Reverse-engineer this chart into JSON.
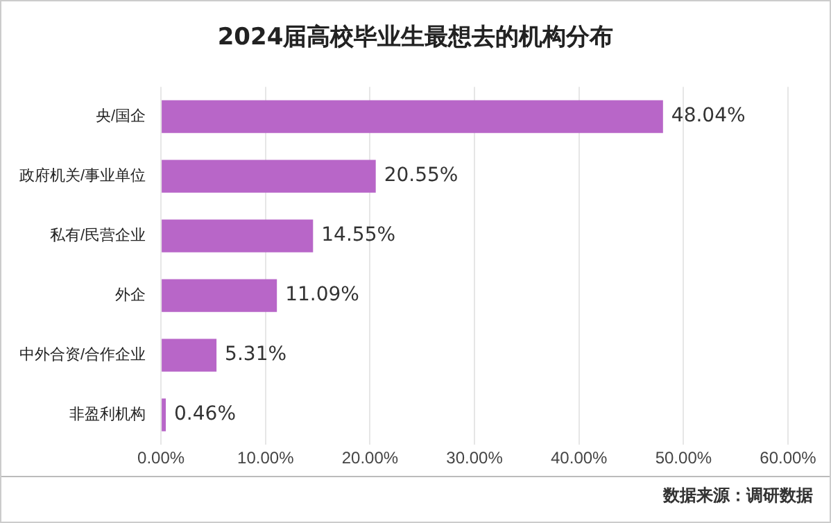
{
  "chart_data": {
    "type": "bar",
    "orientation": "horizontal",
    "title": "2024届高校毕业生最想去的机构分布",
    "categories": [
      "央/国企",
      "政府机关/事业单位",
      "私有/民营企业",
      "外企",
      "中外合资/合作企业",
      "非盈利机构"
    ],
    "values": [
      48.04,
      20.55,
      14.55,
      11.09,
      5.31,
      0.46
    ],
    "value_labels": [
      "48.04%",
      "20.55%",
      "14.55%",
      "11.09%",
      "5.31%",
      "0.46%"
    ],
    "color": "#b866c8",
    "xlim": [
      0,
      60
    ],
    "xticks": [
      {
        "value": 0,
        "label": "0.00%"
      },
      {
        "value": 10,
        "label": "10.00%"
      },
      {
        "value": 20,
        "label": "20.00%"
      },
      {
        "value": 30,
        "label": "30.00%"
      },
      {
        "value": 40,
        "label": "40.00%"
      },
      {
        "value": 50,
        "label": "50.00%"
      },
      {
        "value": 60,
        "label": "60.00%"
      }
    ],
    "grid": "x",
    "legend": false,
    "annotations": [
      "数据来源：调研数据"
    ]
  }
}
